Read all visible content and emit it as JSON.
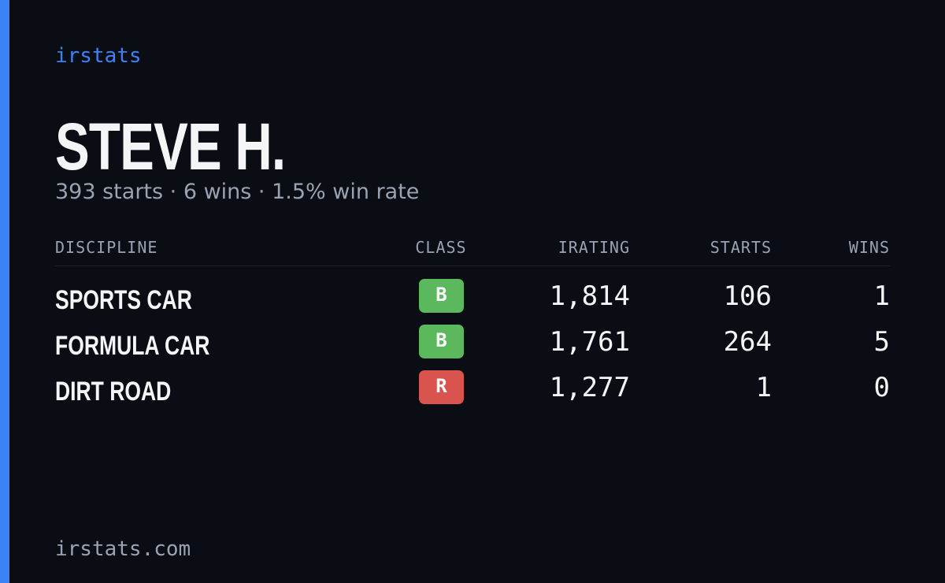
{
  "brand": "irstats",
  "player": {
    "name": "STEVE H.",
    "summary": "393 starts · 6 wins · 1.5% win rate"
  },
  "table": {
    "headers": [
      "DISCIPLINE",
      "CLASS",
      "IRATING",
      "STARTS",
      "WINS"
    ],
    "rows": [
      {
        "discipline": "SPORTS CAR",
        "class": "B",
        "class_color": "#5cb85c",
        "irating": "1,814",
        "starts": "106",
        "wins": "1"
      },
      {
        "discipline": "FORMULA CAR",
        "class": "B",
        "class_color": "#5cb85c",
        "irating": "1,761",
        "starts": "264",
        "wins": "5"
      },
      {
        "discipline": "DIRT ROAD",
        "class": "R",
        "class_color": "#d9534f",
        "irating": "1,277",
        "starts": "1",
        "wins": "0"
      }
    ]
  },
  "footer": "irstats.com"
}
